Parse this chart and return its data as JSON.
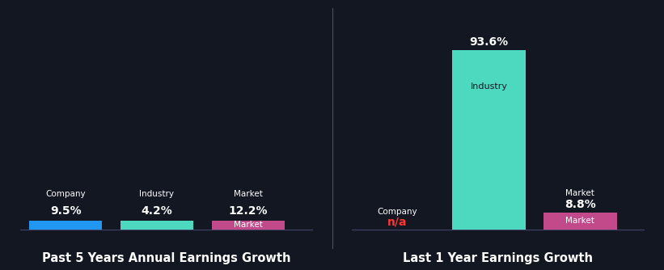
{
  "background_color": "#131722",
  "left_title": "Past 5 Years Annual Earnings Growth",
  "right_title": "Last 1 Year Earnings Growth",
  "title_color": "#ffffff",
  "title_fontsize": 10.5,
  "left_bars": [
    {
      "label": "Company",
      "value": 9.5,
      "color": "#2196f3",
      "value_label": "9.5%",
      "value_color": "#ffffff",
      "label_color": "#ffffff"
    },
    {
      "label": "Industry",
      "value": 4.2,
      "color": "#4dd9c0",
      "value_label": "4.2%",
      "value_color": "#ffffff",
      "label_color": "#ffffff"
    },
    {
      "label": "Market",
      "value": 12.2,
      "color": "#c2498a",
      "value_label": "12.2%",
      "value_color": "#ffffff",
      "label_color": "#ffffff"
    }
  ],
  "right_bars": [
    {
      "label": "Company",
      "value": 0,
      "color": null,
      "value_label": "n/a",
      "value_color": "#ff3333",
      "label_color": "#ffffff",
      "na": true
    },
    {
      "label": "Industry",
      "value": 93.6,
      "color": "#4dd9c0",
      "value_label": "93.6%",
      "value_color": "#ffffff",
      "label_color": "#ffffff"
    },
    {
      "label": "Market",
      "value": 8.8,
      "color": "#c2498a",
      "value_label": "8.8%",
      "value_color": "#ffffff",
      "label_color": "#ffffff"
    }
  ],
  "left_bar_height": 0.6,
  "left_ylim": [
    0,
    14
  ],
  "right_ylim": [
    0,
    110
  ],
  "bar_width": 0.5,
  "divider_color": "#ffffff",
  "divider_alpha": 0.25
}
